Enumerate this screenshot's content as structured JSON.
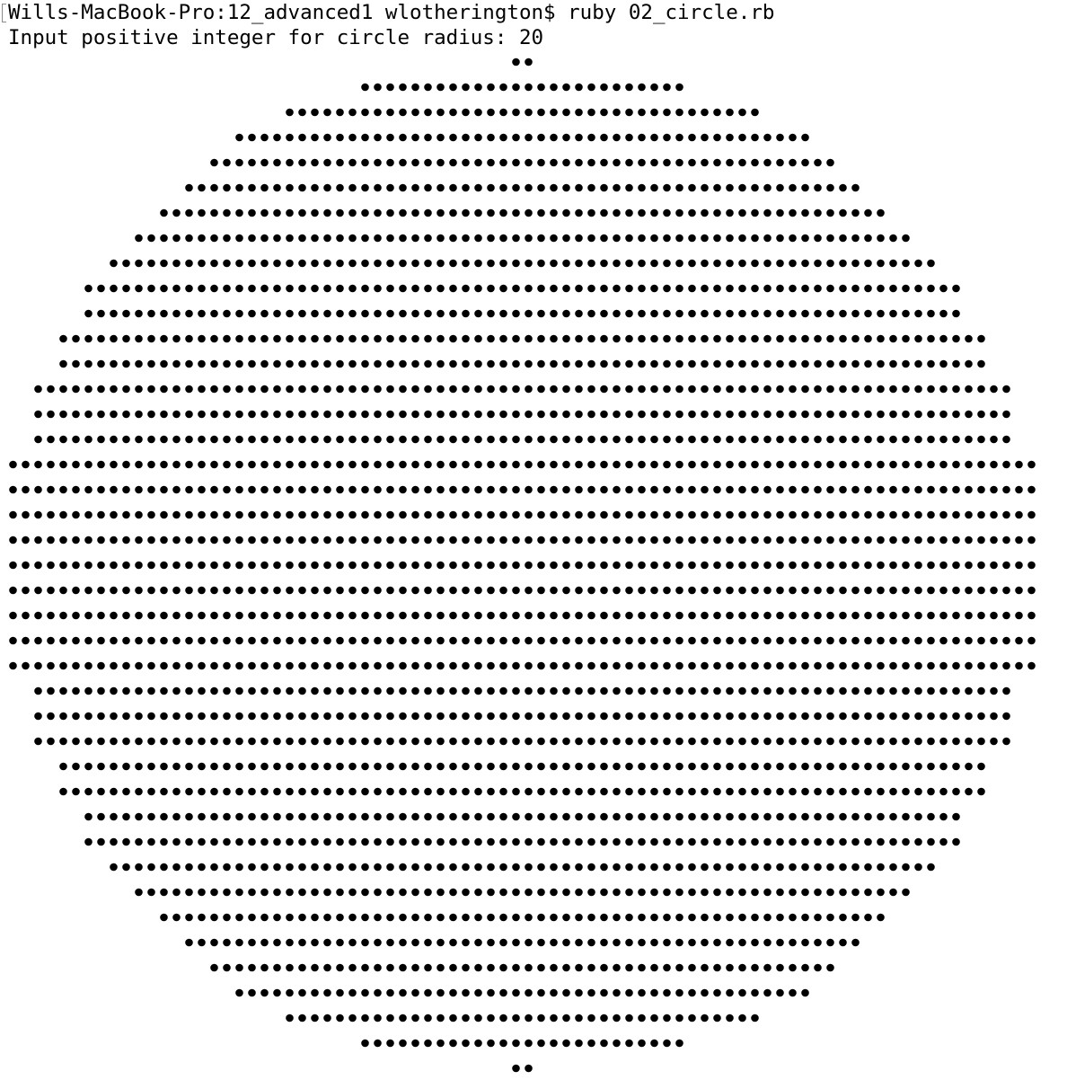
{
  "terminal": {
    "prompt_line": "Wills-MacBook-Pro:12_advanced1 wlotherington$ ruby 02_circle.rb",
    "input_prompt": "Input positive integer for circle radius: ",
    "input_value": "20",
    "glyph": "•",
    "background": "#ffffff",
    "text_color": "#000000"
  },
  "circle_output": {
    "radius": 20,
    "row_dot_counts": [
      2,
      26,
      38,
      46,
      50,
      54,
      58,
      62,
      66,
      70,
      70,
      74,
      74,
      78,
      78,
      78,
      82,
      82,
      82,
      82,
      82,
      82,
      82,
      82,
      82,
      78,
      78,
      78,
      74,
      74,
      70,
      70,
      66,
      62,
      58,
      54,
      50,
      46,
      38,
      26,
      2
    ]
  }
}
